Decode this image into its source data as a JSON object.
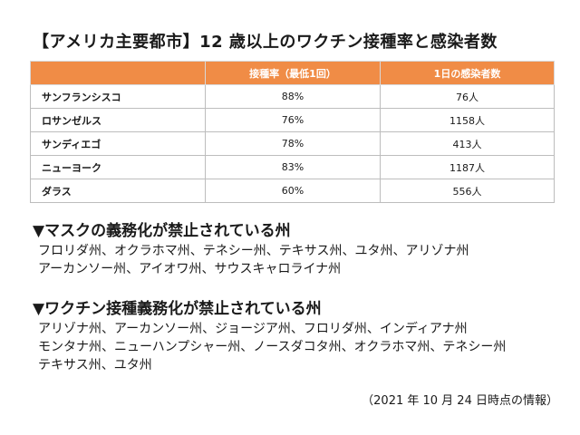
{
  "title": "【アメリカ主要都市】12 歳以上のワクチン接種率と感染者数",
  "table": {
    "headers": [
      "",
      "接種率（最低1回）",
      "1日の感染者数"
    ],
    "rows": [
      [
        "サンフランシスコ",
        "88%",
        "76人"
      ],
      [
        "ロサンゼルス",
        "76%",
        "1158人"
      ],
      [
        "サンディエゴ",
        "78%",
        "413人"
      ],
      [
        "ニューヨーク",
        "83%",
        "1187人"
      ],
      [
        "ダラス",
        "60%",
        "556人"
      ]
    ]
  },
  "mask_section": {
    "heading": "▼マスクの義務化が禁止されている州",
    "lines": [
      "フロリダ州、オクラホマ州、テネシー州、テキサス州、ユタ州、アリゾナ州",
      "アーカンソー州、アイオワ州、サウスキャロライナ州"
    ]
  },
  "vaccine_section": {
    "heading": "▼ワクチン接種義務化が禁止されている州",
    "lines": [
      "アリゾナ州、アーカンソー州、ジョージア州、フロリダ州、インディアナ州",
      "モンタナ州、ニューハンプシャー州、ノースダコタ州、オクラホマ州、テネシー州",
      "テキサス州、ユタ州"
    ]
  },
  "footnote": "（2021 年 10 月 24 日時点の情報）",
  "colors": {
    "header_bg": "#f08c46",
    "header_text": "#ffffff",
    "border": "#bdbdbd"
  }
}
